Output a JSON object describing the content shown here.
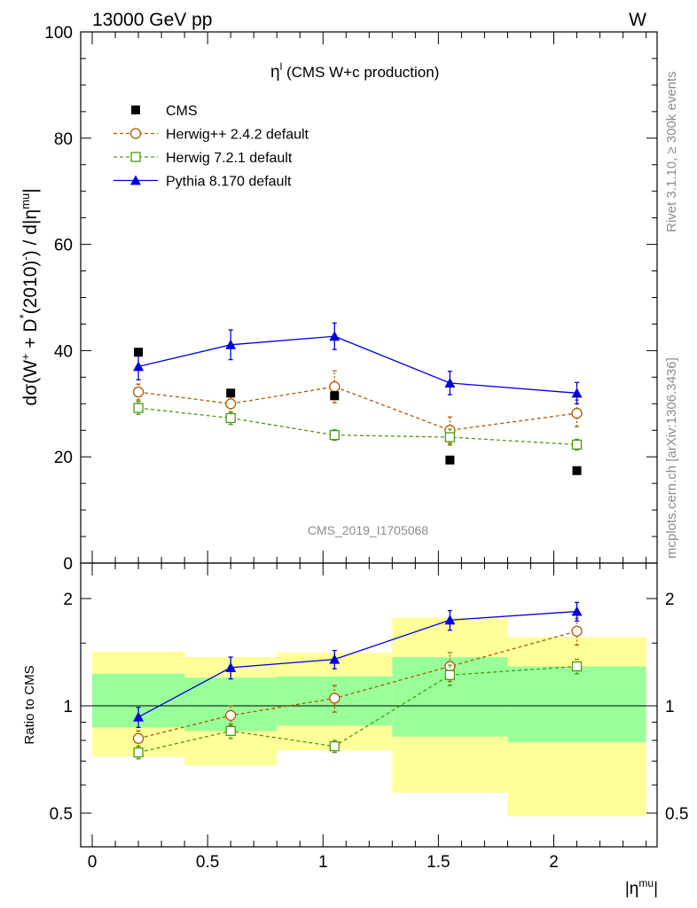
{
  "header": {
    "left": "13000 GeV pp",
    "right": "W"
  },
  "side_labels": {
    "rivet": "Rivet 3.1.10, ≥ 300k events",
    "mcplots": "mcplots.cern.ch [arXiv:1306.3436]"
  },
  "plot_title": "η",
  "plot_title_sup": "l",
  "plot_title_suffix": " (CMS W+c production)",
  "analysis_id": "CMS_2019_I1705068",
  "colors": {
    "cms": "#000000",
    "herwig_pp": "#b35900",
    "herwig7": "#4a9a12",
    "pythia": "#0000dd",
    "band_green": "#99ff99",
    "band_yellow": "#ffff99"
  },
  "chart_data": [
    {
      "type": "scatter",
      "panel": "main",
      "ylabel": "dσ(W+ + D*(2010)-) / d|ηmu|",
      "ylim": [
        0,
        100
      ],
      "yticks": [
        0,
        20,
        40,
        60,
        80,
        100
      ],
      "xlim": [
        -0.1,
        2.45
      ],
      "legend_position": "top-left",
      "x": [
        0.2,
        0.6,
        1.05,
        1.55,
        2.1
      ],
      "series": [
        {
          "name": "CMS",
          "key": "cms",
          "values": [
            39.7,
            32.0,
            31.5,
            19.4,
            17.4
          ]
        },
        {
          "name": "Herwig++ 2.4.2 default",
          "key": "herwig_pp",
          "values": [
            32.2,
            30.0,
            33.2,
            25.0,
            28.2
          ],
          "errors": [
            1.5,
            1.8,
            3.0,
            2.5,
            2.5
          ]
        },
        {
          "name": "Herwig 7.2.1 default",
          "key": "herwig7",
          "values": [
            29.2,
            27.3,
            24.1,
            23.7,
            22.3
          ],
          "errors": [
            1.2,
            1.2,
            1.0,
            1.5,
            1.0
          ]
        },
        {
          "name": "Pythia 8.170 default",
          "key": "pythia",
          "values": [
            37.0,
            41.1,
            42.7,
            33.9,
            32.0
          ],
          "errors": [
            2.5,
            2.8,
            2.5,
            2.2,
            2.0
          ]
        }
      ]
    },
    {
      "type": "line",
      "panel": "ratio",
      "ylabel": "Ratio to CMS",
      "xlabel": "|ηmu|",
      "yscale": "log",
      "ylim": [
        0.4,
        2.35
      ],
      "yticks": [
        0.5,
        1,
        2
      ],
      "xticks": [
        0,
        0.5,
        1,
        1.5,
        2
      ],
      "x": [
        0.2,
        0.6,
        1.05,
        1.55,
        2.1
      ],
      "bands": [
        {
          "x": [
            0.0,
            0.4
          ],
          "green": [
            0.87,
            1.23
          ],
          "yellow": [
            0.72,
            1.42
          ]
        },
        {
          "x": [
            0.4,
            0.8
          ],
          "green": [
            0.85,
            1.2
          ],
          "yellow": [
            0.68,
            1.37
          ]
        },
        {
          "x": [
            0.8,
            1.3
          ],
          "green": [
            0.88,
            1.21
          ],
          "yellow": [
            0.75,
            1.41
          ]
        },
        {
          "x": [
            1.3,
            1.8
          ],
          "green": [
            0.82,
            1.37
          ],
          "yellow": [
            0.57,
            1.77
          ]
        },
        {
          "x": [
            1.8,
            2.4
          ],
          "green": [
            0.79,
            1.29
          ],
          "yellow": [
            0.49,
            1.56
          ]
        }
      ],
      "series": [
        {
          "name": "Herwig++ 2.4.2 default",
          "key": "herwig_pp",
          "values": [
            0.81,
            0.94,
            1.05,
            1.29,
            1.62
          ],
          "errors": [
            0.04,
            0.06,
            0.09,
            0.12,
            0.14
          ]
        },
        {
          "name": "Herwig 7.2.1 default",
          "key": "herwig7",
          "values": [
            0.74,
            0.85,
            0.77,
            1.22,
            1.29
          ],
          "errors": [
            0.03,
            0.04,
            0.03,
            0.08,
            0.06
          ]
        },
        {
          "name": "Pythia 8.170 default",
          "key": "pythia",
          "values": [
            0.93,
            1.28,
            1.35,
            1.74,
            1.84
          ],
          "errors": [
            0.06,
            0.09,
            0.08,
            0.11,
            0.11
          ]
        }
      ]
    }
  ]
}
